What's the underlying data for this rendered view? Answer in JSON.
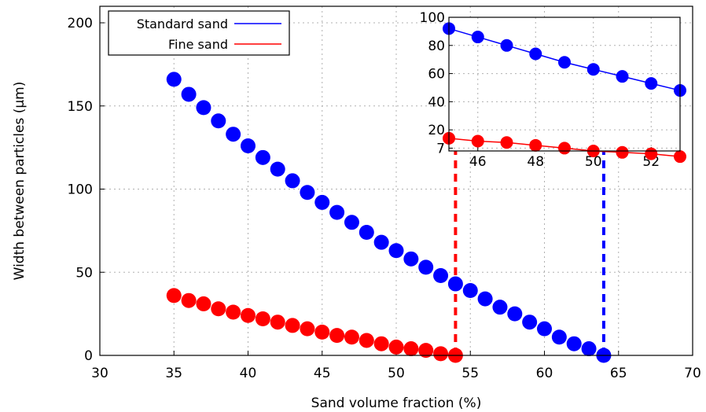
{
  "chart_data": [
    {
      "type": "scatter",
      "xlabel": "Sand volume fraction (%)",
      "ylabel": "Width between particles (μm)",
      "xlim": [
        30,
        70
      ],
      "ylim": [
        0,
        210
      ],
      "xticks": [
        "30",
        "35",
        "40",
        "45",
        "50",
        "55",
        "60",
        "65",
        "70"
      ],
      "yticks": [
        "0",
        "50",
        "100",
        "150",
        "200"
      ],
      "grid": true,
      "legend": "top-left",
      "series": [
        {
          "name": "Standard sand",
          "color": "#0000ff",
          "x": [
            35,
            36,
            37,
            38,
            39,
            40,
            41,
            42,
            43,
            44,
            45,
            46,
            47,
            48,
            49,
            50,
            51,
            52,
            53,
            54,
            55,
            56,
            57,
            58,
            59,
            60,
            61,
            62,
            63,
            64
          ],
          "y": [
            166,
            157,
            149,
            141,
            133,
            126,
            119,
            112,
            105,
            98,
            92,
            86,
            80,
            74,
            68,
            63,
            58,
            53,
            48,
            43,
            39,
            34,
            29,
            25,
            20,
            16,
            11,
            7,
            4,
            0
          ]
        },
        {
          "name": "Fine sand",
          "color": "#ff0000",
          "x": [
            35,
            36,
            37,
            38,
            39,
            40,
            41,
            42,
            43,
            44,
            45,
            46,
            47,
            48,
            49,
            50,
            51,
            52,
            53,
            54
          ],
          "y": [
            36,
            33,
            31,
            28,
            26,
            24,
            22,
            20,
            18,
            16,
            14,
            12,
            11,
            9,
            7,
            5,
            4,
            3,
            1,
            0
          ]
        }
      ],
      "reference_lines": [
        {
          "x": 54,
          "color": "#ff0000",
          "style": "dashed"
        },
        {
          "x": 64,
          "color": "#0000ff",
          "style": "dashed"
        }
      ]
    },
    {
      "type": "line",
      "role": "inset",
      "xlim": [
        45,
        53
      ],
      "ylim": [
        5,
        100
      ],
      "xticks": [
        "46",
        "48",
        "50",
        "52"
      ],
      "yticks": [
        "7",
        "20",
        "40",
        "60",
        "80",
        "100"
      ],
      "grid": true,
      "series": [
        {
          "name": "Standard sand",
          "color": "#0000ff",
          "x": [
            45,
            46,
            47,
            48,
            49,
            50,
            51,
            52,
            53
          ],
          "y": [
            92,
            86,
            80,
            74,
            68,
            63,
            58,
            53,
            48
          ]
        },
        {
          "name": "Fine sand",
          "color": "#ff0000",
          "x": [
            45,
            46,
            47,
            48,
            49,
            50,
            51,
            52,
            53
          ],
          "y": [
            14,
            12,
            11,
            9,
            7,
            5,
            4,
            3,
            1
          ]
        }
      ]
    }
  ]
}
